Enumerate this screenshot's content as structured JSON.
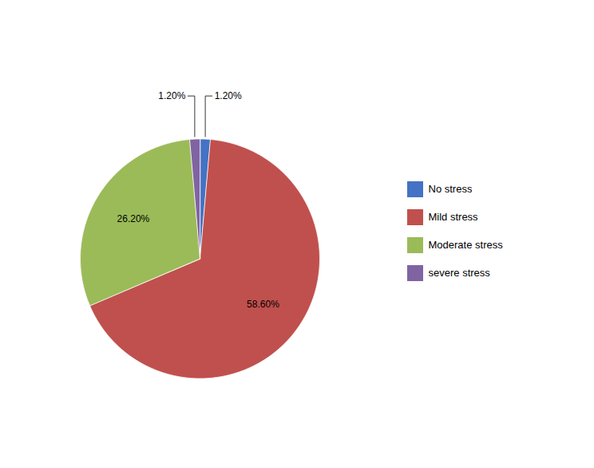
{
  "chart_data": {
    "type": "pie",
    "categories": [
      "No stress",
      "Mild stress",
      "Moderate stress",
      "severe stress"
    ],
    "values": [
      1.2,
      58.6,
      26.2,
      1.2
    ],
    "value_labels": [
      "1.20%",
      "58.60%",
      "26.20%",
      "1.20%"
    ],
    "colors": [
      "#4472C4",
      "#C0504D",
      "#9BBB59",
      "#8064A2"
    ],
    "data_labels": true,
    "legend": "right"
  }
}
